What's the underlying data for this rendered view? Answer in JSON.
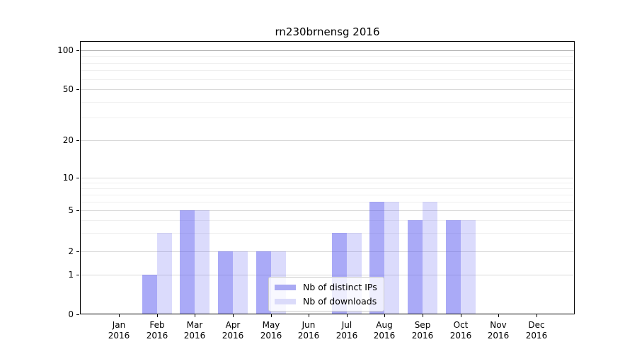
{
  "chart_data": {
    "type": "bar",
    "title": "rn230brnensg 2016",
    "categories": [
      "Jan",
      "Feb",
      "Mar",
      "Apr",
      "May",
      "Jun",
      "Jul",
      "Aug",
      "Sep",
      "Oct",
      "Nov",
      "Dec"
    ],
    "category_year": "2016",
    "series": [
      {
        "name": "Nb of distinct IPs",
        "values": [
          0,
          1,
          5,
          2,
          2,
          0,
          3,
          6,
          4,
          4,
          0,
          0
        ],
        "bar_color": "rgba(85,85,240,0.5)",
        "swatch_color": "#a9a9f3"
      },
      {
        "name": "Nb of downloads",
        "values": [
          0,
          3,
          5,
          2,
          2,
          0,
          3,
          6,
          6,
          4,
          0,
          0
        ],
        "bar_color": "rgba(85,85,240,0.21)",
        "swatch_color": "#dbdbfa"
      }
    ],
    "y_major_ticks": [
      0,
      1,
      2,
      5,
      10,
      20,
      50,
      100
    ],
    "y_minor_ticks": [
      3,
      4,
      6,
      7,
      8,
      9,
      30,
      40,
      60,
      70,
      80,
      90
    ],
    "axis": {
      "y_scale": "symlog",
      "ylim": [
        0,
        110
      ],
      "grid": true,
      "legend_position": "lower center",
      "major_grid_color": "#d9d9d9",
      "top_grid_color": "#b3b3b3",
      "minor_grid_color": "#efefef"
    }
  }
}
